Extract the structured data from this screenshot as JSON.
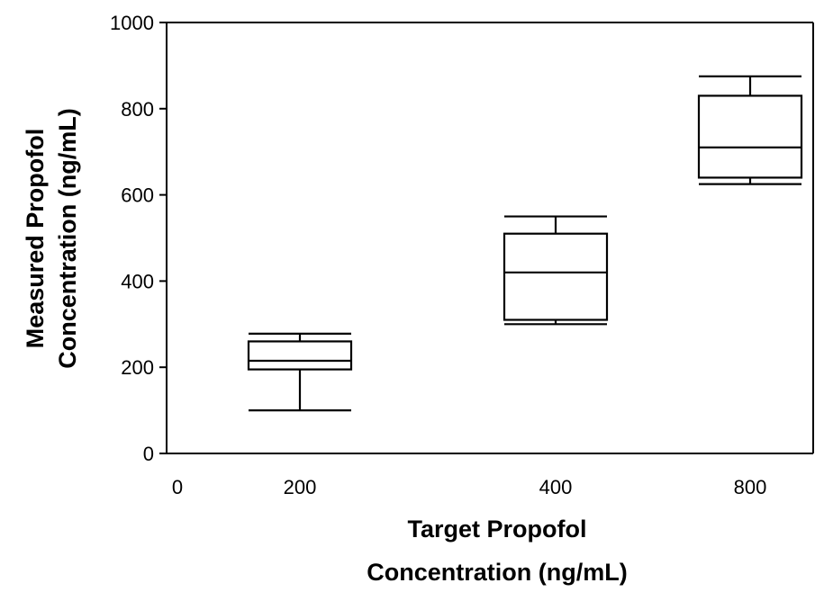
{
  "chart_data": {
    "type": "box",
    "xlabel_lines": [
      "Target Propofol",
      "Concentration (ng/mL)"
    ],
    "ylabel_lines": [
      "Measured Propofol",
      "Concentration (ng/mL)"
    ],
    "y_ticks": [
      "0",
      "200",
      "400",
      "600",
      "800",
      "1000"
    ],
    "x_origin_label": "0",
    "ylim": [
      0,
      1000
    ],
    "grid": false,
    "categories": [
      "200",
      "400",
      "800"
    ],
    "boxes": [
      {
        "category": "200",
        "min": 100,
        "q1": 195,
        "median": 215,
        "q3": 260,
        "max": 278
      },
      {
        "category": "400",
        "min": 300,
        "q1": 310,
        "median": 420,
        "q3": 510,
        "max": 550
      },
      {
        "category": "800",
        "min": 625,
        "q1": 640,
        "median": 710,
        "q3": 830,
        "max": 875
      }
    ]
  }
}
